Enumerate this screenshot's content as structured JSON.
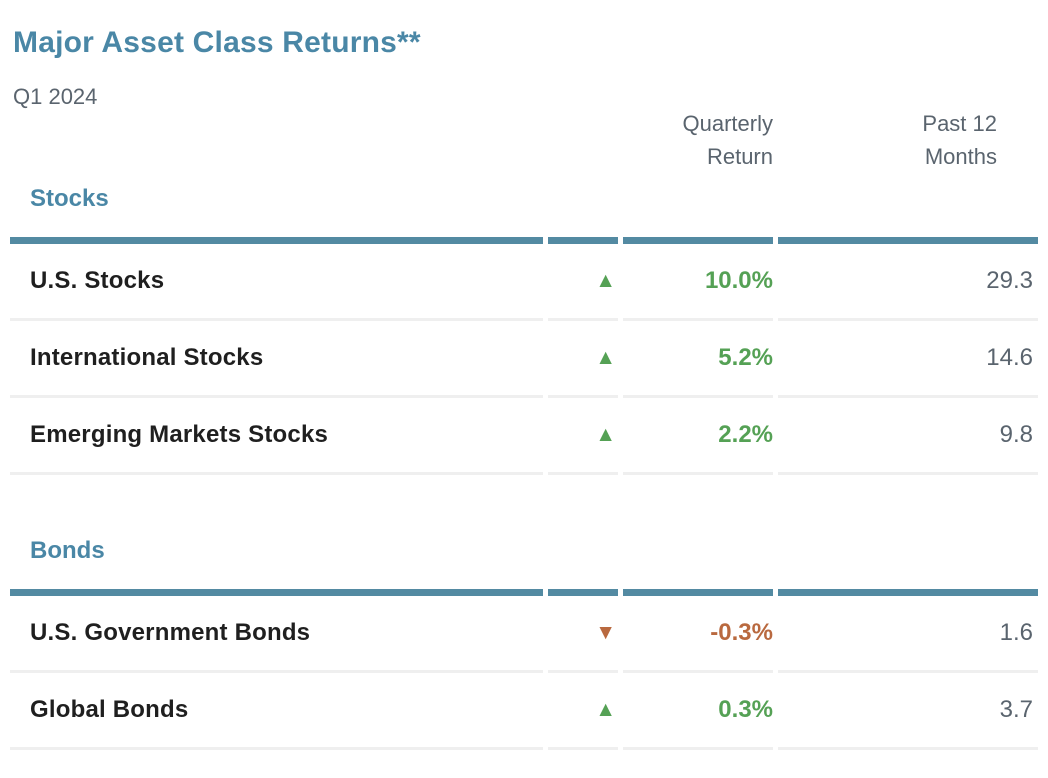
{
  "chart_data": {
    "type": "table",
    "title": "Major Asset Class Returns**",
    "subtitle": "Q1 2024",
    "column_headers": {
      "quarterly": "Quarterly Return",
      "past12": "Past 12 Months"
    },
    "sections": [
      {
        "name": "Stocks",
        "rows": [
          {
            "label": "U.S. Stocks",
            "direction": "up",
            "quarterly_return": "10.0%",
            "past_12_months": "29.3"
          },
          {
            "label": "International Stocks",
            "direction": "up",
            "quarterly_return": "5.2%",
            "past_12_months": "14.6"
          },
          {
            "label": "Emerging Markets Stocks",
            "direction": "up",
            "quarterly_return": "2.2%",
            "past_12_months": "9.8"
          }
        ]
      },
      {
        "name": "Bonds",
        "rows": [
          {
            "label": "U.S. Government Bonds",
            "direction": "down",
            "quarterly_return": "-0.3%",
            "past_12_months": "1.6"
          },
          {
            "label": "Global Bonds",
            "direction": "up",
            "quarterly_return": "0.3%",
            "past_12_months": "3.7"
          }
        ]
      }
    ]
  },
  "icons": {
    "up": "▲",
    "down": "▼"
  },
  "colors": {
    "heading-teal": "#4a87a6",
    "rule-teal": "#538aa2",
    "text-gray": "#5a646e",
    "label-dark": "#1f1f1f",
    "positive-green": "#55a155",
    "negative-rust": "#b9693f",
    "separator-gray": "#efefef"
  }
}
